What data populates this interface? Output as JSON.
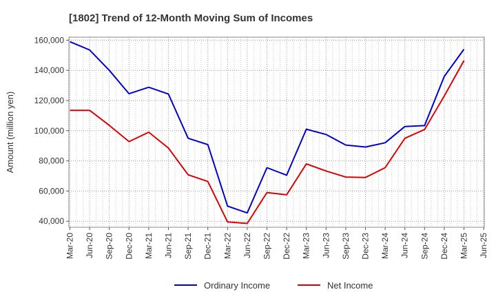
{
  "chart_data": {
    "type": "line",
    "title": "[1802]  Trend of 12-Month Moving Sum of Incomes",
    "xlabel": "",
    "ylabel": "Amount (million yen)",
    "ylim": [
      36000,
      162000
    ],
    "yticks": [
      40000,
      60000,
      80000,
      100000,
      120000,
      140000,
      160000
    ],
    "ytick_labels": [
      "40,000",
      "60,000",
      "80,000",
      "100,000",
      "120,000",
      "140,000",
      "160,000"
    ],
    "x_tick_labels": [
      "Mar-20",
      "Jun-20",
      "Sep-20",
      "Dec-20",
      "Mar-21",
      "Jun-21",
      "Sep-21",
      "Dec-21",
      "Mar-22",
      "Jun-22",
      "Sep-22",
      "Dec-22",
      "Mar-23",
      "Jun-23",
      "Sep-23",
      "Dec-23",
      "Mar-24",
      "Jun-24",
      "Sep-24",
      "Dec-24",
      "Mar-25",
      "Jun-25"
    ],
    "grid": true,
    "legend_position": "bottom",
    "series": [
      {
        "name": "Ordinary Income",
        "color": "#0000cc",
        "values": [
          159000,
          153500,
          140000,
          124500,
          128800,
          124300,
          95000,
          90800,
          50000,
          45500,
          75500,
          70500,
          101000,
          97500,
          90500,
          89200,
          92000,
          102800,
          103400,
          136000,
          154000
        ]
      },
      {
        "name": "Net Income",
        "color": "#dd0000",
        "values": [
          113500,
          113500,
          103500,
          92800,
          99000,
          88500,
          70800,
          66300,
          39500,
          38500,
          59000,
          57500,
          78000,
          73300,
          69300,
          69000,
          75500,
          95000,
          100800,
          123000,
          146500
        ]
      }
    ]
  }
}
